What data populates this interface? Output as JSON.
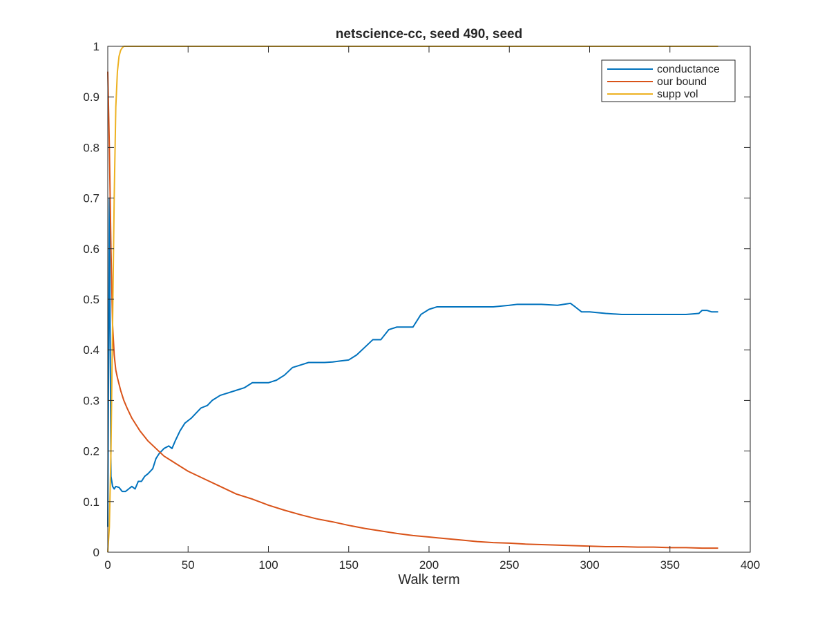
{
  "chart_data": {
    "type": "line",
    "title": "netscience-cc, seed 490, seed",
    "xlabel": "Walk term",
    "ylabel": "",
    "xlim": [
      0,
      400
    ],
    "ylim": [
      0,
      1
    ],
    "xticks": [
      0,
      50,
      100,
      150,
      200,
      250,
      300,
      350,
      400
    ],
    "yticks": [
      0,
      0.1,
      0.2,
      0.3,
      0.4,
      0.5,
      0.6,
      0.7,
      0.8,
      0.9,
      1
    ],
    "xtick_labels": [
      "0",
      "50",
      "100",
      "150",
      "200",
      "250",
      "300",
      "350",
      "400"
    ],
    "ytick_labels": [
      "0",
      "0.1",
      "0.2",
      "0.3",
      "0.4",
      "0.5",
      "0.6",
      "0.7",
      "0.8",
      "0.9",
      "1"
    ],
    "grid": false,
    "legend_position": "top-right",
    "series": [
      {
        "name": "conductance",
        "color": "#0072bd",
        "points": [
          [
            0,
            0.05
          ],
          [
            1,
            0.7
          ],
          [
            2,
            0.15
          ],
          [
            3,
            0.13
          ],
          [
            4,
            0.125
          ],
          [
            5,
            0.13
          ],
          [
            7,
            0.128
          ],
          [
            9,
            0.12
          ],
          [
            11,
            0.12
          ],
          [
            13,
            0.125
          ],
          [
            15,
            0.13
          ],
          [
            17,
            0.125
          ],
          [
            19,
            0.14
          ],
          [
            21,
            0.14
          ],
          [
            23,
            0.15
          ],
          [
            25,
            0.155
          ],
          [
            28,
            0.165
          ],
          [
            30,
            0.185
          ],
          [
            32,
            0.195
          ],
          [
            35,
            0.205
          ],
          [
            38,
            0.21
          ],
          [
            40,
            0.205
          ],
          [
            42,
            0.22
          ],
          [
            45,
            0.24
          ],
          [
            48,
            0.255
          ],
          [
            52,
            0.265
          ],
          [
            55,
            0.275
          ],
          [
            58,
            0.285
          ],
          [
            62,
            0.29
          ],
          [
            65,
            0.3
          ],
          [
            70,
            0.31
          ],
          [
            75,
            0.315
          ],
          [
            80,
            0.32
          ],
          [
            85,
            0.325
          ],
          [
            90,
            0.335
          ],
          [
            95,
            0.335
          ],
          [
            100,
            0.335
          ],
          [
            105,
            0.34
          ],
          [
            110,
            0.35
          ],
          [
            115,
            0.365
          ],
          [
            120,
            0.37
          ],
          [
            125,
            0.375
          ],
          [
            130,
            0.375
          ],
          [
            135,
            0.375
          ],
          [
            140,
            0.376
          ],
          [
            145,
            0.378
          ],
          [
            150,
            0.38
          ],
          [
            155,
            0.39
          ],
          [
            160,
            0.405
          ],
          [
            165,
            0.42
          ],
          [
            170,
            0.42
          ],
          [
            175,
            0.44
          ],
          [
            180,
            0.445
          ],
          [
            185,
            0.445
          ],
          [
            190,
            0.445
          ],
          [
            195,
            0.47
          ],
          [
            200,
            0.48
          ],
          [
            205,
            0.485
          ],
          [
            210,
            0.485
          ],
          [
            220,
            0.485
          ],
          [
            230,
            0.485
          ],
          [
            240,
            0.485
          ],
          [
            250,
            0.488
          ],
          [
            255,
            0.49
          ],
          [
            260,
            0.49
          ],
          [
            270,
            0.49
          ],
          [
            280,
            0.488
          ],
          [
            288,
            0.492
          ],
          [
            291,
            0.485
          ],
          [
            295,
            0.475
          ],
          [
            300,
            0.475
          ],
          [
            310,
            0.472
          ],
          [
            320,
            0.47
          ],
          [
            330,
            0.47
          ],
          [
            340,
            0.47
          ],
          [
            350,
            0.47
          ],
          [
            360,
            0.47
          ],
          [
            368,
            0.472
          ],
          [
            370,
            0.478
          ],
          [
            373,
            0.478
          ],
          [
            376,
            0.475
          ],
          [
            380,
            0.475
          ]
        ]
      },
      {
        "name": "our bound",
        "color": "#d95319",
        "points": [
          [
            0,
            0.95
          ],
          [
            1,
            0.8
          ],
          [
            2,
            0.6
          ],
          [
            3,
            0.45
          ],
          [
            4,
            0.39
          ],
          [
            5,
            0.36
          ],
          [
            6,
            0.345
          ],
          [
            8,
            0.32
          ],
          [
            10,
            0.3
          ],
          [
            12,
            0.285
          ],
          [
            15,
            0.265
          ],
          [
            18,
            0.25
          ],
          [
            20,
            0.24
          ],
          [
            25,
            0.22
          ],
          [
            30,
            0.205
          ],
          [
            35,
            0.19
          ],
          [
            40,
            0.18
          ],
          [
            50,
            0.16
          ],
          [
            60,
            0.145
          ],
          [
            70,
            0.13
          ],
          [
            80,
            0.115
          ],
          [
            90,
            0.105
          ],
          [
            100,
            0.093
          ],
          [
            110,
            0.083
          ],
          [
            120,
            0.074
          ],
          [
            130,
            0.066
          ],
          [
            140,
            0.06
          ],
          [
            150,
            0.053
          ],
          [
            160,
            0.047
          ],
          [
            170,
            0.042
          ],
          [
            180,
            0.037
          ],
          [
            190,
            0.033
          ],
          [
            200,
            0.03
          ],
          [
            210,
            0.027
          ],
          [
            220,
            0.024
          ],
          [
            230,
            0.021
          ],
          [
            240,
            0.019
          ],
          [
            250,
            0.018
          ],
          [
            260,
            0.016
          ],
          [
            270,
            0.015
          ],
          [
            280,
            0.014
          ],
          [
            290,
            0.013
          ],
          [
            300,
            0.012
          ],
          [
            310,
            0.011
          ],
          [
            320,
            0.011
          ],
          [
            330,
            0.01
          ],
          [
            340,
            0.01
          ],
          [
            350,
            0.009
          ],
          [
            360,
            0.009
          ],
          [
            370,
            0.008
          ],
          [
            380,
            0.008
          ]
        ]
      },
      {
        "name": "supp vol",
        "color": "#edb120",
        "points": [
          [
            0,
            0.0
          ],
          [
            1,
            0.05
          ],
          [
            2,
            0.2
          ],
          [
            3,
            0.45
          ],
          [
            4,
            0.7
          ],
          [
            5,
            0.88
          ],
          [
            6,
            0.95
          ],
          [
            7,
            0.98
          ],
          [
            8,
            0.992
          ],
          [
            9,
            0.997
          ],
          [
            10,
            1.0
          ],
          [
            20,
            1.0
          ],
          [
            50,
            1.0
          ],
          [
            100,
            1.0
          ],
          [
            200,
            1.0
          ],
          [
            300,
            1.0
          ],
          [
            380,
            1.0
          ]
        ]
      }
    ]
  }
}
